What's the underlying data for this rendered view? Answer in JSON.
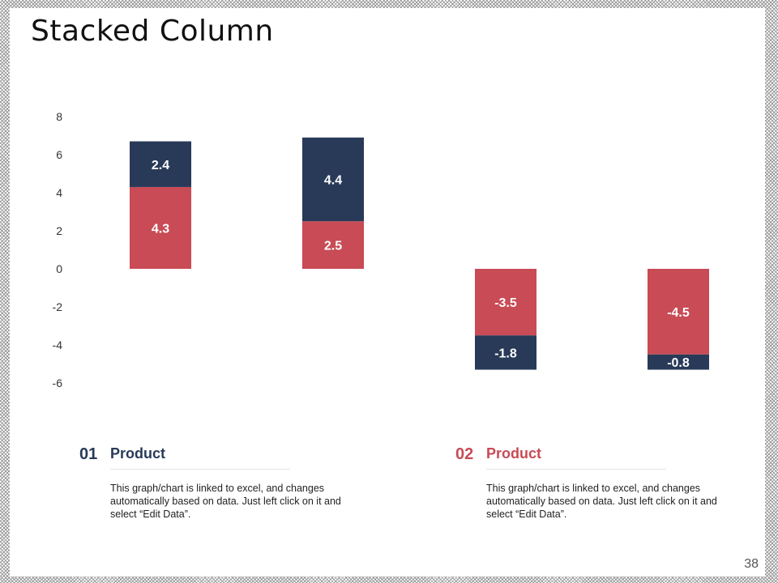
{
  "title": "Stacked Column",
  "page_number": "38",
  "colors": {
    "series_1": "#C84B55",
    "series_2": "#283A58"
  },
  "chart_data": {
    "type": "bar",
    "stacked": true,
    "categories": [
      "",
      "",
      "",
      ""
    ],
    "series": [
      {
        "values": [
          4.3,
          2.5,
          -3.5,
          -4.5
        ],
        "color": "#C84B55"
      },
      {
        "values": [
          2.4,
          4.4,
          -1.8,
          -0.8
        ],
        "color": "#283A58"
      }
    ],
    "ylim": [
      -6,
      8
    ],
    "yticks": [
      8,
      6,
      4,
      2,
      0,
      -2,
      -4,
      -6
    ],
    "grid": false,
    "legend": "none"
  },
  "blocks": [
    {
      "number": "01",
      "heading": "Product",
      "text": "This graph/chart is linked to excel, and changes automatically based on data. Just left click on it and select “Edit Data”.",
      "number_color": "#283A58",
      "heading_color": "#283A58"
    },
    {
      "number": "02",
      "heading": "Product",
      "text": "This graph/chart is linked to excel, and changes automatically based on data. Just left click on it and select “Edit Data”.",
      "number_color": "#C84B55",
      "heading_color": "#C84B55"
    }
  ]
}
